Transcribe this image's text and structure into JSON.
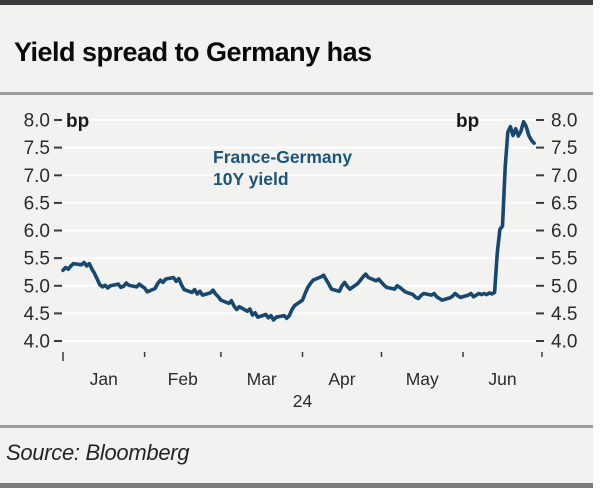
{
  "header": {
    "title": "Yield spread to Germany has"
  },
  "source": {
    "text": "Source: Bloomberg"
  },
  "chart_data": {
    "type": "line",
    "title": "Yield spread to Germany has",
    "unit_label_left": "bp",
    "unit_label_right": "bp",
    "annotation": {
      "line1": "France-Germany",
      "line2": "10Y yield"
    },
    "ylim": [
      4.0,
      8.0
    ],
    "yticks": [
      8.0,
      7.5,
      7.0,
      6.5,
      6.0,
      5.5,
      5.0,
      4.5,
      4.0
    ],
    "x_months": [
      "Jan",
      "Feb",
      "Mar",
      "Apr",
      "May",
      "Jun"
    ],
    "x_year_label": "24",
    "month_start_days": [
      0,
      31,
      60,
      91,
      121,
      152,
      182
    ],
    "colors": {
      "line": "#17486f",
      "annotation": "#1c5379",
      "grid": "#fdfdfd",
      "axis_text": "#2b2b2b",
      "tick": "#3a3a3a"
    },
    "series": [
      {
        "name": "France-Germany 10Y yield spread (bp)",
        "points": [
          [
            0,
            5.28
          ],
          [
            1,
            5.33
          ],
          [
            2,
            5.3
          ],
          [
            3,
            5.36
          ],
          [
            4,
            5.4
          ],
          [
            7,
            5.38
          ],
          [
            8,
            5.42
          ],
          [
            9,
            5.36
          ],
          [
            10,
            5.4
          ],
          [
            11,
            5.3
          ],
          [
            12,
            5.22
          ],
          [
            14,
            5.02
          ],
          [
            15,
            4.98
          ],
          [
            16,
            5.01
          ],
          [
            17,
            4.96
          ],
          [
            18,
            5.0
          ],
          [
            21,
            5.03
          ],
          [
            22,
            4.97
          ],
          [
            23,
            4.99
          ],
          [
            24,
            5.05
          ],
          [
            25,
            5.01
          ],
          [
            28,
            4.98
          ],
          [
            29,
            5.03
          ],
          [
            30,
            4.99
          ],
          [
            31,
            4.96
          ],
          [
            32,
            4.89
          ],
          [
            35,
            4.95
          ],
          [
            36,
            5.04
          ],
          [
            37,
            5.1
          ],
          [
            38,
            5.06
          ],
          [
            39,
            5.12
          ],
          [
            42,
            5.15
          ],
          [
            43,
            5.08
          ],
          [
            44,
            5.13
          ],
          [
            45,
            5.02
          ],
          [
            46,
            4.93
          ],
          [
            49,
            4.88
          ],
          [
            50,
            4.93
          ],
          [
            51,
            4.85
          ],
          [
            52,
            4.9
          ],
          [
            53,
            4.83
          ],
          [
            56,
            4.87
          ],
          [
            57,
            4.92
          ],
          [
            58,
            4.85
          ],
          [
            59,
            4.8
          ],
          [
            60,
            4.74
          ],
          [
            63,
            4.68
          ],
          [
            64,
            4.73
          ],
          [
            65,
            4.63
          ],
          [
            66,
            4.57
          ],
          [
            67,
            4.62
          ],
          [
            70,
            4.54
          ],
          [
            71,
            4.58
          ],
          [
            72,
            4.47
          ],
          [
            73,
            4.51
          ],
          [
            74,
            4.43
          ],
          [
            77,
            4.48
          ],
          [
            78,
            4.42
          ],
          [
            79,
            4.46
          ],
          [
            80,
            4.38
          ],
          [
            81,
            4.43
          ],
          [
            84,
            4.46
          ],
          [
            85,
            4.41
          ],
          [
            86,
            4.46
          ],
          [
            87,
            4.57
          ],
          [
            88,
            4.64
          ],
          [
            91,
            4.74
          ],
          [
            92,
            4.86
          ],
          [
            93,
            4.97
          ],
          [
            94,
            5.04
          ],
          [
            95,
            5.1
          ],
          [
            98,
            5.16
          ],
          [
            99,
            5.19
          ],
          [
            100,
            5.11
          ],
          [
            101,
            5.03
          ],
          [
            102,
            4.94
          ],
          [
            105,
            4.9
          ],
          [
            106,
            5.0
          ],
          [
            107,
            5.06
          ],
          [
            108,
            4.99
          ],
          [
            109,
            4.94
          ],
          [
            112,
            5.04
          ],
          [
            113,
            5.1
          ],
          [
            114,
            5.16
          ],
          [
            115,
            5.21
          ],
          [
            116,
            5.15
          ],
          [
            119,
            5.09
          ],
          [
            120,
            5.12
          ],
          [
            121,
            5.06
          ],
          [
            122,
            5.01
          ],
          [
            123,
            4.97
          ],
          [
            126,
            4.94
          ],
          [
            127,
            5.0
          ],
          [
            128,
            4.97
          ],
          [
            129,
            4.93
          ],
          [
            130,
            4.89
          ],
          [
            133,
            4.84
          ],
          [
            134,
            4.79
          ],
          [
            135,
            4.77
          ],
          [
            136,
            4.82
          ],
          [
            137,
            4.86
          ],
          [
            140,
            4.83
          ],
          [
            141,
            4.86
          ],
          [
            142,
            4.8
          ],
          [
            143,
            4.77
          ],
          [
            144,
            4.74
          ],
          [
            147,
            4.78
          ],
          [
            148,
            4.81
          ],
          [
            149,
            4.86
          ],
          [
            150,
            4.82
          ],
          [
            151,
            4.79
          ],
          [
            154,
            4.83
          ],
          [
            155,
            4.86
          ],
          [
            156,
            4.8
          ],
          [
            157,
            4.83
          ],
          [
            158,
            4.86
          ],
          [
            159,
            4.84
          ],
          [
            160,
            4.86
          ],
          [
            161,
            4.84
          ],
          [
            162,
            4.87
          ],
          [
            163,
            4.85
          ],
          [
            164,
            4.88
          ],
          [
            165,
            5.6
          ],
          [
            166,
            6.02
          ],
          [
            167,
            6.08
          ],
          [
            168,
            7.15
          ],
          [
            169,
            7.78
          ],
          [
            170,
            7.88
          ],
          [
            171,
            7.72
          ],
          [
            172,
            7.84
          ],
          [
            173,
            7.71
          ],
          [
            174,
            7.8
          ],
          [
            175,
            7.97
          ],
          [
            176,
            7.88
          ],
          [
            177,
            7.72
          ],
          [
            178,
            7.63
          ],
          [
            179,
            7.58
          ]
        ]
      }
    ]
  }
}
